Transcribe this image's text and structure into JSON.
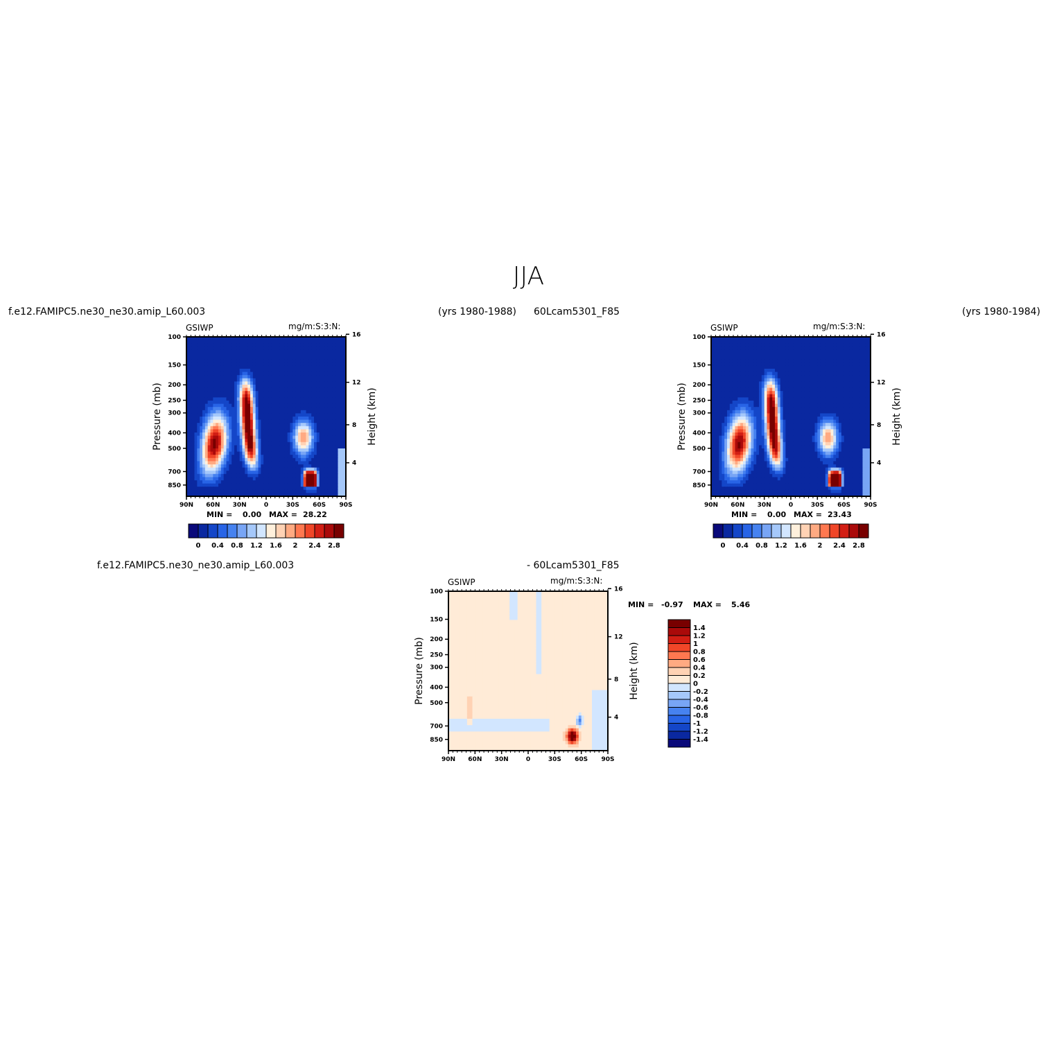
{
  "figure": {
    "title": "JJA",
    "header_left": "f.e12.FAMIPC5.ne30_ne30.amip_L60.003",
    "header_years_1": "(yrs 1980-1988)",
    "header_case_2": "60Lcam5301_F85",
    "header_years_2": "(yrs 1980-1984)",
    "diff_left": "f.e12.FAMIPC5.ne30_ne30.amip_L60.003",
    "diff_right": "- 60Lcam5301_F85"
  },
  "panels": [
    {
      "variable": "GSIWP",
      "units": "mg/m:S:3:N:",
      "min_label": "MIN =",
      "min_value": "0.00",
      "max_label": "MAX =",
      "max_value": "28.22",
      "colorbar_labels": [
        "0",
        "0.4",
        "0.8",
        "1.2",
        "1.6",
        "2",
        "2.4",
        "2.8"
      ]
    },
    {
      "variable": "GSIWP",
      "units": "mg/m:S:3:N:",
      "min_label": "MIN =",
      "min_value": "0.00",
      "max_label": "MAX =",
      "max_value": "23.43",
      "colorbar_labels": [
        "0",
        "0.4",
        "0.8",
        "1.2",
        "1.6",
        "2",
        "2.4",
        "2.8"
      ]
    },
    {
      "variable": "GSIWP",
      "units": "mg/m:S:3:N:",
      "min_label": "MIN =",
      "min_value": "-0.97",
      "max_label": "MAX =",
      "max_value": "5.46",
      "colorbar_labels": [
        "1.4",
        "1.2",
        "1",
        "0.8",
        "0.6",
        "0.4",
        "0.2",
        "0",
        "-0.2",
        "-0.4",
        "-0.6",
        "-0.8",
        "-1",
        "-1.2",
        "-1.4"
      ]
    }
  ],
  "axes": {
    "ylabel_left": "Pressure (mb)",
    "ylabel_right": "Height (km)",
    "pressure_ticks": [
      "100",
      "150",
      "200",
      "250",
      "300",
      "400",
      "500",
      "700",
      "850"
    ],
    "height_ticks": [
      "16",
      "12",
      "8",
      "4"
    ],
    "lat_ticks": [
      "90N",
      "60N",
      "30N",
      "0",
      "30S",
      "60S",
      "90S"
    ]
  },
  "colors": {
    "abs_scale": [
      "#0a0a7a",
      "#0a28a0",
      "#1446c8",
      "#2864e6",
      "#4682f0",
      "#78a5f5",
      "#a5c8fa",
      "#d2e6ff",
      "#fff0dc",
      "#ffd2b4",
      "#ffaa82",
      "#ff7850",
      "#f04628",
      "#d21e14",
      "#aa0a0a",
      "#780000"
    ],
    "diff_scale": [
      "#780000",
      "#aa0a0a",
      "#d21e14",
      "#f04628",
      "#ff7850",
      "#ffaa82",
      "#ffd2b4",
      "#ffebd7",
      "#d2e6ff",
      "#a5c8fa",
      "#78a5f5",
      "#4682f0",
      "#2864e6",
      "#1446c8",
      "#0a28a0",
      "#0a0a7a"
    ]
  },
  "chart_data": [
    {
      "type": "heatmap",
      "title": "GSIWP",
      "units": "mg/m:S:3:N:",
      "x": [
        "90N",
        "60N",
        "30N",
        "0",
        "30S",
        "60S",
        "90S"
      ],
      "y": [
        100,
        150,
        200,
        250,
        300,
        400,
        500,
        700,
        850
      ],
      "ylabel": "Pressure (mb)",
      "y2label": "Height (km)",
      "min": 0.0,
      "max": 28.22,
      "levels": [
        0,
        0.2,
        0.4,
        0.6,
        0.8,
        1.0,
        1.2,
        1.4,
        1.6,
        1.8,
        2.0,
        2.2,
        2.4,
        2.6,
        2.8
      ],
      "features": [
        {
          "lat": 62,
          "p": 450,
          "value": 2.6
        },
        {
          "lat": 12,
          "p": 330,
          "value": 3.0
        },
        {
          "lat": -42,
          "p": 420,
          "value": 2.0
        },
        {
          "lat": -50,
          "p": 790,
          "value": 3.0
        }
      ]
    },
    {
      "type": "heatmap",
      "title": "GSIWP",
      "units": "mg/m:S:3:N:",
      "x": [
        "90N",
        "60N",
        "30N",
        "0",
        "30S",
        "60S",
        "90S"
      ],
      "y": [
        100,
        150,
        200,
        250,
        300,
        400,
        500,
        700,
        850
      ],
      "ylabel": "Pressure (mb)",
      "y2label": "Height (km)",
      "min": 0.0,
      "max": 23.43,
      "levels": [
        0,
        0.2,
        0.4,
        0.6,
        0.8,
        1.0,
        1.2,
        1.4,
        1.6,
        1.8,
        2.0,
        2.2,
        2.4,
        2.6,
        2.8
      ],
      "features": [
        {
          "lat": 62,
          "p": 450,
          "value": 2.6
        },
        {
          "lat": 12,
          "p": 330,
          "value": 3.0
        },
        {
          "lat": -42,
          "p": 420,
          "value": 2.0
        },
        {
          "lat": -50,
          "p": 790,
          "value": 3.0
        }
      ]
    },
    {
      "type": "heatmap",
      "title": "GSIWP",
      "units": "mg/m:S:3:N:",
      "x": [
        "90N",
        "60N",
        "30N",
        "0",
        "30S",
        "60S",
        "90S"
      ],
      "y": [
        100,
        150,
        200,
        250,
        300,
        400,
        500,
        700,
        850
      ],
      "ylabel": "Pressure (mb)",
      "y2label": "Height (km)",
      "min": -0.97,
      "max": 5.46,
      "levels": [
        -1.4,
        -1.2,
        -1.0,
        -0.8,
        -0.6,
        -0.4,
        -0.2,
        0,
        0.2,
        0.4,
        0.6,
        0.8,
        1.0,
        1.2,
        1.4
      ],
      "features": [
        {
          "lat": -50,
          "p": 820,
          "value": 1.5
        },
        {
          "lat": -57,
          "p": 640,
          "value": -0.8
        }
      ]
    }
  ]
}
